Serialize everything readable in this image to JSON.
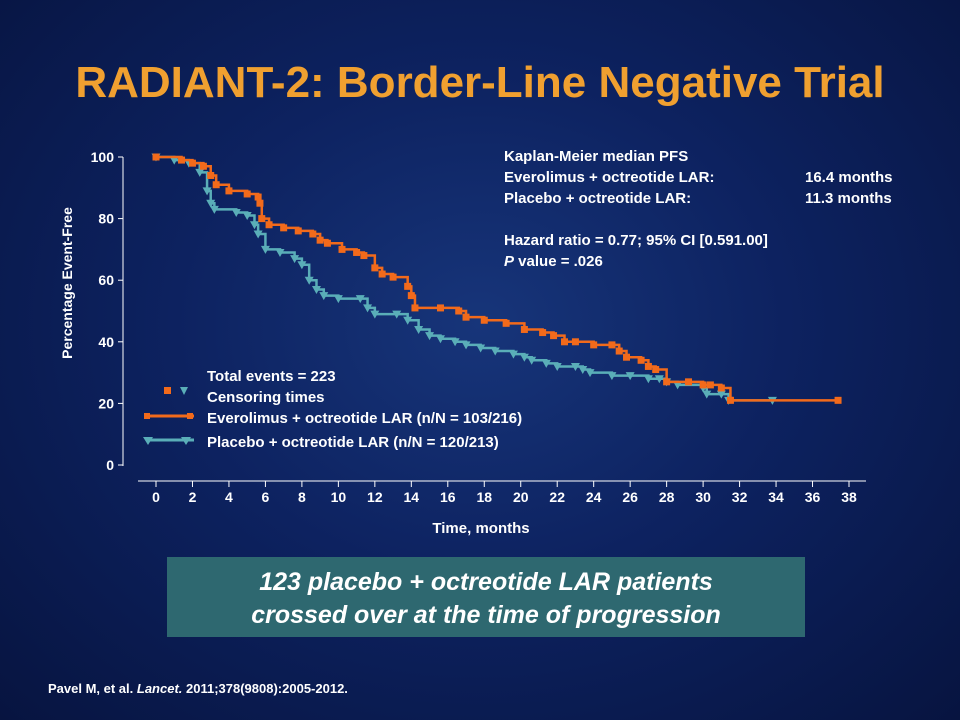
{
  "slide": {
    "title": "RADIANT-2: Border-Line Negative Trial",
    "callout_line1": "123 placebo + octreotide LAR patients",
    "callout_line2": "crossed over at the time of progression",
    "citation_authors": "Pavel M, et al. ",
    "citation_journal": "Lancet.",
    "citation_rest": " 2011;378(9808):2005-2012."
  },
  "chart_data": {
    "type": "line",
    "xlabel": "Time, months",
    "ylabel": "Percentage Event-Free",
    "xlim": [
      0,
      38
    ],
    "ylim": [
      0,
      100
    ],
    "x_ticks": [
      "0",
      "2",
      "4",
      "6",
      "8",
      "10",
      "12",
      "14",
      "16",
      "18",
      "20",
      "22",
      "24",
      "26",
      "28",
      "30",
      "32",
      "34",
      "36",
      "38"
    ],
    "y_ticks": [
      "0",
      "20",
      "40",
      "60",
      "80",
      "100"
    ],
    "annotations": {
      "km_title": "Kaplan-Meier median PFS",
      "everolimus_label": "Everolimus + octreotide LAR:",
      "everolimus_value": "16.4 months",
      "placebo_label": "Placebo + octreotide LAR:",
      "placebo_value": "11.3 months",
      "hazard_ratio": "Hazard ratio = 0.77; 95% CI [0.591.00]",
      "p_italic": "P",
      "p_rest": " value = .026"
    },
    "legend": {
      "total_events": "Total events = 223",
      "censoring": "Censoring times",
      "everolimus": "Everolimus + octreotide LAR (n/N = 103/216)",
      "placebo": "Placebo + octreotide LAR (n/N = 120/213)"
    },
    "colors": {
      "everolimus": "#f26a1b",
      "placebo": "#5aaeb8",
      "axis": "#ffffff"
    },
    "series": [
      {
        "name": "Everolimus + octreotide LAR",
        "marker": "square",
        "values": [
          [
            0,
            100
          ],
          [
            1.4,
            99
          ],
          [
            2.0,
            98
          ],
          [
            2.6,
            97
          ],
          [
            3.0,
            94
          ],
          [
            3.3,
            91
          ],
          [
            4.0,
            89
          ],
          [
            5.0,
            88
          ],
          [
            5.6,
            87
          ],
          [
            5.7,
            85
          ],
          [
            5.8,
            80
          ],
          [
            6.2,
            78
          ],
          [
            7.0,
            77
          ],
          [
            7.8,
            76
          ],
          [
            8.6,
            75
          ],
          [
            9.0,
            73
          ],
          [
            9.4,
            72
          ],
          [
            10.2,
            70
          ],
          [
            11.0,
            69
          ],
          [
            11.4,
            68
          ],
          [
            12.0,
            64
          ],
          [
            12.4,
            62
          ],
          [
            13.0,
            61
          ],
          [
            13.8,
            58
          ],
          [
            14.0,
            55
          ],
          [
            14.2,
            51
          ],
          [
            15.6,
            51
          ],
          [
            16.6,
            50
          ],
          [
            17.0,
            48
          ],
          [
            18.0,
            47
          ],
          [
            19.2,
            46
          ],
          [
            20.2,
            44
          ],
          [
            21.2,
            43
          ],
          [
            21.8,
            42
          ],
          [
            22.4,
            40
          ],
          [
            23.0,
            40
          ],
          [
            24.0,
            39
          ],
          [
            25.0,
            39
          ],
          [
            25.4,
            37
          ],
          [
            25.8,
            35
          ],
          [
            26.6,
            34
          ],
          [
            27.0,
            32
          ],
          [
            27.4,
            31
          ],
          [
            28.0,
            27
          ],
          [
            29.2,
            27
          ],
          [
            30.0,
            26
          ],
          [
            30.4,
            26
          ],
          [
            31.0,
            25
          ],
          [
            31.5,
            21
          ],
          [
            37.4,
            21
          ]
        ]
      },
      {
        "name": "Placebo + octreotide LAR",
        "marker": "triangle-down",
        "values": [
          [
            0,
            100
          ],
          [
            1.0,
            99
          ],
          [
            1.8,
            98
          ],
          [
            2.4,
            95
          ],
          [
            2.8,
            89
          ],
          [
            3.0,
            85
          ],
          [
            3.2,
            83
          ],
          [
            4.4,
            82
          ],
          [
            5.0,
            81
          ],
          [
            5.4,
            78
          ],
          [
            5.6,
            75
          ],
          [
            6.0,
            70
          ],
          [
            6.8,
            69
          ],
          [
            7.6,
            67
          ],
          [
            8.0,
            65
          ],
          [
            8.4,
            60
          ],
          [
            8.8,
            57
          ],
          [
            9.2,
            55
          ],
          [
            10.0,
            54
          ],
          [
            11.2,
            54
          ],
          [
            11.6,
            51
          ],
          [
            12.0,
            49
          ],
          [
            13.2,
            49
          ],
          [
            13.8,
            47
          ],
          [
            14.4,
            44
          ],
          [
            15.0,
            42
          ],
          [
            15.6,
            41
          ],
          [
            16.4,
            40
          ],
          [
            17.0,
            39
          ],
          [
            17.8,
            38
          ],
          [
            18.6,
            37
          ],
          [
            19.6,
            36
          ],
          [
            20.2,
            35
          ],
          [
            20.6,
            34
          ],
          [
            21.4,
            33
          ],
          [
            22.0,
            32
          ],
          [
            23.0,
            32
          ],
          [
            23.4,
            31
          ],
          [
            23.8,
            30
          ],
          [
            25.0,
            29
          ],
          [
            26.0,
            29
          ],
          [
            27.0,
            28
          ],
          [
            27.6,
            28
          ],
          [
            28.0,
            27
          ],
          [
            28.6,
            26
          ],
          [
            30.0,
            25
          ],
          [
            30.2,
            23
          ],
          [
            31.0,
            23
          ],
          [
            31.4,
            21
          ],
          [
            33.8,
            21
          ]
        ]
      }
    ]
  }
}
